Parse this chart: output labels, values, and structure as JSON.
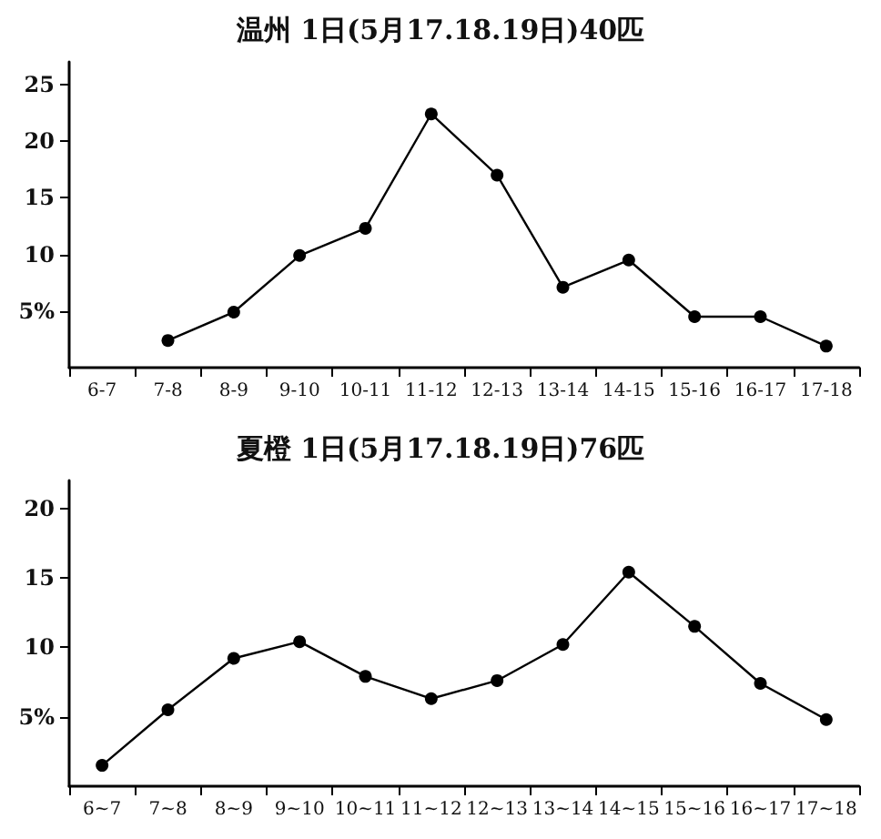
{
  "chart_data": [
    {
      "type": "line",
      "title": "温州 1日(5月17.18.19日)40匹",
      "categories": [
        "6-7",
        "7-8",
        "8-9",
        "9-10",
        "10-11",
        "11-12",
        "12-13",
        "13-14",
        "14-15",
        "15-16",
        "16-17",
        "17-18"
      ],
      "series": [
        {
          "color": "#000000",
          "values": [
            null,
            2.4,
            4.9,
            9.9,
            12.3,
            22.4,
            17.0,
            7.1,
            9.5,
            4.5,
            4.5,
            1.9
          ]
        }
      ],
      "ylim": [
        0,
        27
      ],
      "yticks": [
        {
          "value": 5,
          "label": "5%"
        },
        10,
        15,
        20,
        25
      ],
      "marker": "circle",
      "line_style": "solid"
    },
    {
      "type": "line",
      "title": "夏橙 1日(5月17.18.19日)76匹",
      "categories": [
        "6~7",
        "7~8",
        "8~9",
        "9~10",
        "10~11",
        "11~12",
        "12~13",
        "13~14",
        "14~15",
        "15~16",
        "16~17",
        "17~18"
      ],
      "series": [
        {
          "color": "#000000",
          "values": [
            1.5,
            5.5,
            9.2,
            10.4,
            7.9,
            6.3,
            7.6,
            10.2,
            15.4,
            11.5,
            7.4,
            4.8
          ]
        }
      ],
      "ylim": [
        0,
        22
      ],
      "yticks": [
        {
          "value": 5,
          "label": "5%"
        },
        10,
        15,
        20
      ],
      "marker": "circle",
      "line_style": "solid"
    }
  ]
}
